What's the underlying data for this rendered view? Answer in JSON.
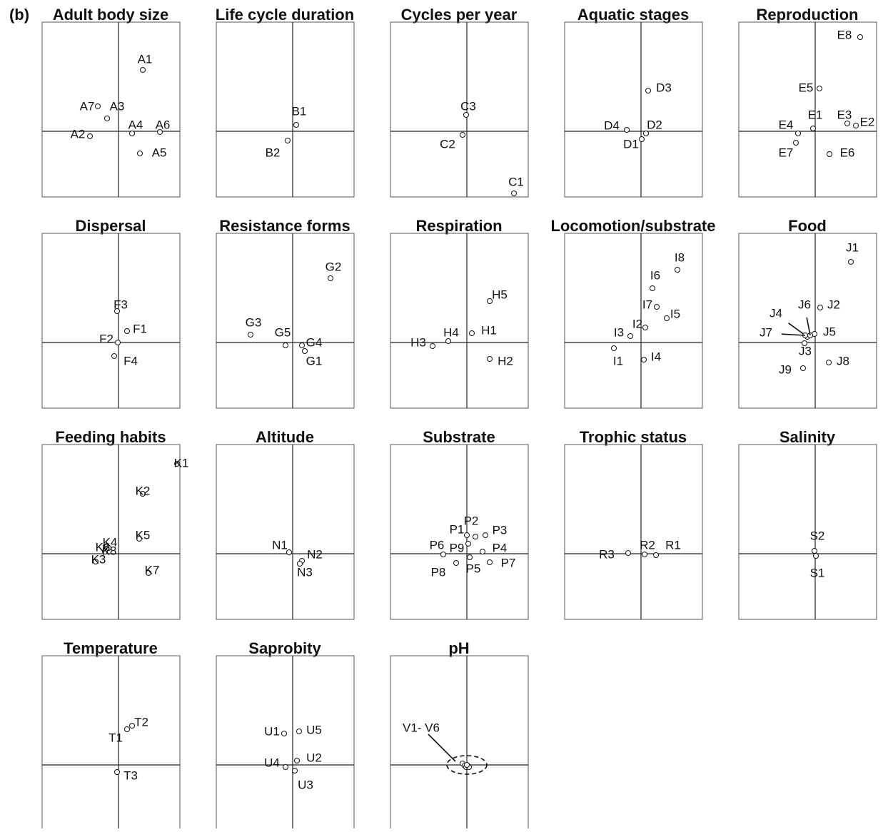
{
  "figure_label": "(b)",
  "chart_data": [
    {
      "type": "scatter",
      "title": "Adult body size",
      "xlim": [
        -1.07,
        0.86
      ],
      "ylim": [
        -0.92,
        1.53
      ],
      "labels": [
        "A1",
        "A2",
        "A3",
        "A4",
        "A5",
        "A6",
        "A7"
      ],
      "x": [
        0.34,
        -0.4,
        -0.16,
        0.19,
        0.3,
        0.58,
        -0.29
      ],
      "y": [
        0.86,
        -0.07,
        0.18,
        -0.03,
        -0.31,
        -0.01,
        0.35
      ]
    },
    {
      "type": "scatter",
      "title": "Life cycle duration",
      "xlim": [
        -1.07,
        0.86
      ],
      "ylim": [
        -0.92,
        1.53
      ],
      "labels": [
        "B1",
        "B2"
      ],
      "x": [
        0.05,
        -0.07
      ],
      "y": [
        0.09,
        -0.13
      ]
    },
    {
      "type": "scatter",
      "title": "Cycles per year",
      "xlim": [
        -1.07,
        0.86
      ],
      "ylim": [
        -0.92,
        1.53
      ],
      "labels": [
        "C1",
        "C2",
        "C3"
      ],
      "x": [
        0.66,
        -0.06,
        -0.01
      ],
      "y": [
        -0.87,
        -0.05,
        0.23
      ]
    },
    {
      "type": "scatter",
      "title": "Aquatic stages",
      "xlim": [
        -1.07,
        0.86
      ],
      "ylim": [
        -0.92,
        1.53
      ],
      "labels": [
        "D1",
        "D2",
        "D3",
        "D4"
      ],
      "x": [
        0.01,
        0.07,
        0.1,
        -0.2
      ],
      "y": [
        -0.11,
        -0.03,
        0.57,
        0.02
      ]
    },
    {
      "type": "scatter",
      "title": "Reproduction",
      "xlim": [
        -1.07,
        0.86
      ],
      "ylim": [
        -0.92,
        1.53
      ],
      "labels": [
        "E1",
        "E2",
        "E3",
        "E4",
        "E5",
        "E6",
        "E7",
        "E8"
      ],
      "x": [
        -0.03,
        0.57,
        0.45,
        -0.24,
        0.06,
        0.2,
        -0.27,
        0.63
      ],
      "y": [
        0.04,
        0.08,
        0.11,
        -0.03,
        0.6,
        -0.32,
        -0.16,
        1.32
      ]
    },
    {
      "type": "scatter",
      "title": "Dispersal",
      "xlim": [
        -1.07,
        0.86
      ],
      "ylim": [
        -0.92,
        1.53
      ],
      "labels": [
        "F1",
        "F2",
        "F3",
        "F4"
      ],
      "x": [
        0.12,
        -0.01,
        -0.02,
        -0.06
      ],
      "y": [
        0.16,
        0.0,
        0.44,
        -0.19
      ]
    },
    {
      "type": "scatter",
      "title": "Resistance forms",
      "xlim": [
        -1.07,
        0.86
      ],
      "ylim": [
        -0.92,
        1.53
      ],
      "labels": [
        "G1",
        "G2",
        "G3",
        "G4",
        "G5"
      ],
      "x": [
        0.17,
        0.53,
        -0.59,
        0.13,
        -0.1
      ],
      "y": [
        -0.12,
        0.9,
        0.11,
        -0.04,
        -0.04
      ]
    },
    {
      "type": "scatter",
      "title": "Respiration",
      "xlim": [
        -1.07,
        0.86
      ],
      "ylim": [
        -0.92,
        1.53
      ],
      "labels": [
        "H1",
        "H2",
        "H3",
        "H4",
        "H5"
      ],
      "x": [
        0.07,
        0.32,
        -0.48,
        -0.26,
        0.32
      ],
      "y": [
        0.13,
        -0.23,
        -0.05,
        0.02,
        0.58
      ]
    },
    {
      "type": "scatter",
      "title": "Locomotion/substrate",
      "xlim": [
        -1.07,
        0.86
      ],
      "ylim": [
        -0.92,
        1.53
      ],
      "labels": [
        "I1",
        "I2",
        "I3",
        "I4",
        "I5",
        "I6",
        "I7",
        "I8"
      ],
      "x": [
        -0.38,
        0.06,
        -0.15,
        0.04,
        0.36,
        0.16,
        0.22,
        0.51
      ],
      "y": [
        -0.08,
        0.21,
        0.09,
        -0.24,
        0.34,
        0.76,
        0.5,
        1.02
      ]
    },
    {
      "type": "scatter",
      "title": "Food",
      "xlim": [
        -1.07,
        0.86
      ],
      "ylim": [
        -0.92,
        1.53
      ],
      "labels": [
        "J1",
        "J2",
        "J3",
        "J4",
        "J5",
        "J6",
        "J7",
        "J8",
        "J9"
      ],
      "x": [
        0.5,
        0.07,
        -0.15,
        -0.11,
        -0.01,
        -0.07,
        -0.14,
        0.19,
        -0.17
      ],
      "y": [
        1.13,
        0.49,
        -0.01,
        0.08,
        0.12,
        0.1,
        0.1,
        -0.28,
        -0.36
      ]
    },
    {
      "type": "scatter",
      "title": "Feeding habits",
      "xlim": [
        -1.07,
        0.86
      ],
      "ylim": [
        -0.92,
        1.53
      ],
      "labels": [
        "K1",
        "K2",
        "K3",
        "K4",
        "K5",
        "K6",
        "K7",
        "K8"
      ],
      "x": [
        0.82,
        0.34,
        -0.32,
        -0.18,
        0.29,
        -0.14,
        0.42,
        -0.19
      ],
      "y": [
        1.26,
        0.84,
        -0.11,
        0.1,
        0.21,
        0.08,
        -0.27,
        0.03
      ]
    },
    {
      "type": "scatter",
      "title": "Altitude",
      "xlim": [
        -1.07,
        0.86
      ],
      "ylim": [
        -0.92,
        1.53
      ],
      "labels": [
        "N1",
        "N2",
        "N3"
      ],
      "x": [
        -0.05,
        0.13,
        0.1
      ],
      "y": [
        0.02,
        -0.1,
        -0.14
      ]
    },
    {
      "type": "scatter",
      "title": "Substrate",
      "xlim": [
        -1.07,
        0.86
      ],
      "ylim": [
        -0.92,
        1.53
      ],
      "labels": [
        "P1",
        "P2",
        "P3",
        "P4",
        "P5",
        "P6",
        "P7",
        "P8",
        "P9"
      ],
      "x": [
        0.0,
        0.12,
        0.26,
        0.22,
        0.04,
        -0.33,
        0.32,
        -0.15,
        0.02
      ],
      "y": [
        0.26,
        0.24,
        0.26,
        0.03,
        -0.05,
        -0.01,
        -0.12,
        -0.13,
        0.14
      ]
    },
    {
      "type": "scatter",
      "title": "Trophic status",
      "xlim": [
        -1.07,
        0.86
      ],
      "ylim": [
        -0.92,
        1.53
      ],
      "labels": [
        "R1",
        "R2",
        "R3"
      ],
      "x": [
        0.21,
        0.05,
        -0.18
      ],
      "y": [
        -0.02,
        -0.01,
        0.01
      ]
    },
    {
      "type": "scatter",
      "title": "Salinity",
      "xlim": [
        -1.07,
        0.86
      ],
      "ylim": [
        -0.92,
        1.53
      ],
      "labels": [
        "S1",
        "S2"
      ],
      "x": [
        0.01,
        -0.01
      ],
      "y": [
        -0.03,
        0.04
      ]
    },
    {
      "type": "scatter",
      "title": "Temperature",
      "xlim": [
        -1.07,
        0.86
      ],
      "ylim": [
        -0.92,
        1.53
      ],
      "labels": [
        "T1",
        "T2",
        "T3"
      ],
      "x": [
        0.12,
        0.19,
        -0.02
      ],
      "y": [
        0.5,
        0.55,
        -0.1
      ]
    },
    {
      "type": "scatter",
      "title": "Saprobity",
      "xlim": [
        -1.07,
        0.86
      ],
      "ylim": [
        -0.92,
        1.53
      ],
      "labels": [
        "U1",
        "U2",
        "U3",
        "U4",
        "U5"
      ],
      "x": [
        -0.12,
        0.06,
        0.03,
        -0.1,
        0.09
      ],
      "y": [
        0.44,
        0.06,
        -0.08,
        -0.03,
        0.47
      ]
    },
    {
      "type": "scatter",
      "title": "pH",
      "xlim": [
        -1.07,
        0.86
      ],
      "ylim": [
        -0.92,
        1.53
      ],
      "annotation": "V1- V6",
      "x": [
        -0.06,
        -0.03,
        -0.01,
        0.01,
        0.03,
        0.0
      ],
      "y": [
        0.02,
        -0.01,
        -0.03,
        -0.01,
        -0.03,
        0.0
      ]
    }
  ]
}
